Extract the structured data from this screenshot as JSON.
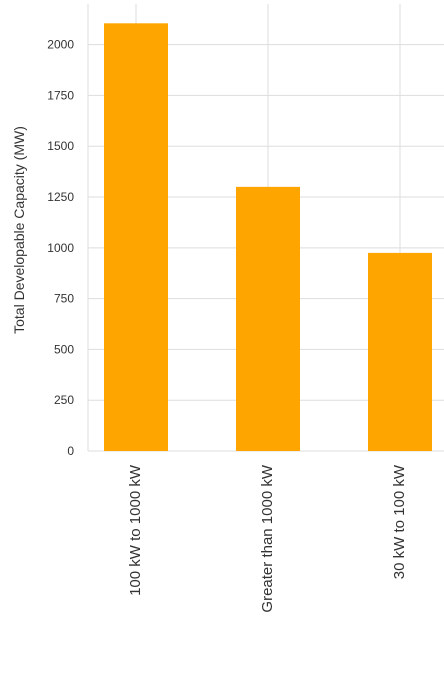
{
  "chart_data": {
    "type": "bar",
    "title": "",
    "xlabel": "",
    "ylabel": "Total Developable Capacity (MW)",
    "categories": [
      "100 kW to 1000 kW",
      "Greater than 1000 kW",
      "30 kW to 100 kW"
    ],
    "values": [
      2105,
      1300,
      975
    ],
    "ylim": [
      0,
      2200
    ],
    "yticks": [
      0,
      250,
      500,
      750,
      1000,
      1250,
      1500,
      1750,
      2000
    ],
    "grid": true,
    "bar_color": "#FFA500",
    "grid_color": "#dddddd"
  }
}
